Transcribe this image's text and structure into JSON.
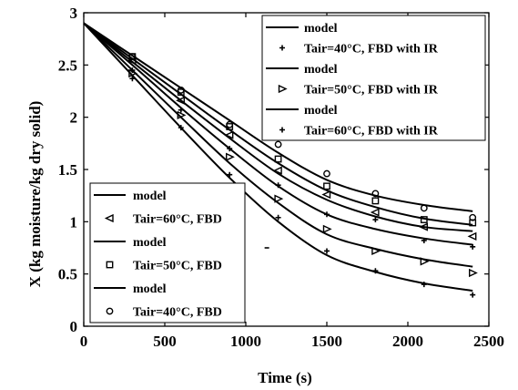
{
  "chart_data": {
    "type": "scatter",
    "xlabel": "Time (s)",
    "ylabel": "X (kg moisture/kg dry solid)",
    "xlim": [
      0,
      2500
    ],
    "ylim": [
      0,
      3
    ],
    "x_ticks": [
      0,
      500,
      1000,
      1500,
      2000,
      2500
    ],
    "y_ticks": [
      0,
      0.5,
      1,
      1.5,
      2,
      2.5,
      3
    ],
    "x_tick_labels": [
      "0",
      "500",
      "1000",
      "1500",
      "2000",
      "2500"
    ],
    "y_tick_labels": [
      "0",
      "0.5",
      "1",
      "1.5",
      "2",
      "2.5",
      "3"
    ],
    "grid": false,
    "legends": [
      {
        "placement": "top-right",
        "entries": [
          {
            "marker": "line",
            "label": "model"
          },
          {
            "marker": "plus",
            "label": "Tair=40°C, FBD with IR"
          },
          {
            "marker": "line",
            "label": "model"
          },
          {
            "marker": "triangle-right",
            "label": "Tair=50°C, FBD with IR"
          },
          {
            "marker": "line",
            "label": "model"
          },
          {
            "marker": "plus",
            "label": "Tair=60°C, FBD with IR"
          }
        ]
      },
      {
        "placement": "bottom-left",
        "entries": [
          {
            "marker": "line",
            "label": "model"
          },
          {
            "marker": "triangle-left",
            "label": "Tair=60°C, FBD"
          },
          {
            "marker": "line",
            "label": "model"
          },
          {
            "marker": "square",
            "label": "Tair=50°C, FBD"
          },
          {
            "marker": "line",
            "label": "model"
          },
          {
            "marker": "circle",
            "label": "Tair=40°C, FBD"
          }
        ]
      }
    ],
    "series": [
      {
        "kind": "line",
        "x": [
          0,
          300,
          600,
          900,
          1200,
          1500,
          1800,
          2100,
          2400
        ],
        "y": [
          2.9,
          2.59,
          2.28,
          1.97,
          1.66,
          1.4,
          1.25,
          1.16,
          1.1
        ]
      },
      {
        "kind": "line",
        "x": [
          0,
          300,
          600,
          900,
          1200,
          1500,
          1800,
          2100,
          2400
        ],
        "y": [
          2.9,
          2.56,
          2.22,
          1.88,
          1.56,
          1.3,
          1.14,
          1.03,
          0.97
        ]
      },
      {
        "kind": "line",
        "x": [
          0,
          300,
          600,
          900,
          1200,
          1500,
          1800,
          2100,
          2400
        ],
        "y": [
          2.9,
          2.53,
          2.16,
          1.8,
          1.46,
          1.21,
          1.05,
          0.95,
          0.91
        ]
      },
      {
        "kind": "line",
        "x": [
          0,
          300,
          600,
          900,
          1200,
          1500,
          1800,
          2100,
          2400
        ],
        "y": [
          2.9,
          2.5,
          2.09,
          1.7,
          1.34,
          1.07,
          0.93,
          0.84,
          0.78
        ]
      },
      {
        "kind": "line",
        "x": [
          0,
          300,
          600,
          900,
          1200,
          1500,
          1800,
          2100,
          2400
        ],
        "y": [
          2.9,
          2.45,
          2.0,
          1.56,
          1.18,
          0.88,
          0.74,
          0.64,
          0.57
        ]
      },
      {
        "kind": "line",
        "x": [
          0,
          300,
          600,
          900,
          1200,
          1500,
          1800,
          2100,
          2400
        ],
        "y": [
          2.9,
          2.4,
          1.9,
          1.42,
          1.0,
          0.68,
          0.52,
          0.41,
          0.34
        ]
      },
      {
        "kind": "points",
        "marker": "circle",
        "x": [
          300,
          600,
          900,
          1200,
          1500,
          1800,
          2100,
          2400
        ],
        "y": [
          2.58,
          2.26,
          1.93,
          1.74,
          1.46,
          1.27,
          1.13,
          1.04
        ]
      },
      {
        "kind": "points",
        "marker": "square",
        "x": [
          300,
          600,
          900,
          1200,
          1500,
          1800,
          2100,
          2400
        ],
        "y": [
          2.58,
          2.24,
          1.91,
          1.6,
          1.34,
          1.2,
          1.02,
          0.99
        ]
      },
      {
        "kind": "points",
        "marker": "triangle-left",
        "x": [
          300,
          600,
          900,
          1200,
          1500,
          1800,
          2100,
          2400
        ],
        "y": [
          2.54,
          2.16,
          1.83,
          1.49,
          1.26,
          1.09,
          0.95,
          0.86
        ]
      },
      {
        "kind": "points",
        "marker": "plus",
        "x": [
          300,
          600,
          900,
          1200,
          1500,
          1800,
          2100,
          2400
        ],
        "y": [
          2.45,
          2.07,
          1.7,
          1.35,
          1.07,
          1.02,
          0.82,
          0.76
        ]
      },
      {
        "kind": "points",
        "marker": "triangle-right",
        "x": [
          300,
          600,
          900,
          1200,
          1500,
          1800,
          2100,
          2400
        ],
        "y": [
          2.42,
          2.02,
          1.62,
          1.22,
          0.93,
          0.72,
          0.62,
          0.51
        ]
      },
      {
        "kind": "points",
        "marker": "plus",
        "x": [
          300,
          600,
          900,
          1200,
          1500,
          1800,
          2100,
          2400
        ],
        "y": [
          2.37,
          1.9,
          1.45,
          1.04,
          0.72,
          0.53,
          0.4,
          0.3
        ]
      },
      {
        "kind": "points",
        "marker": "dash",
        "x": [
          1130
        ],
        "y": [
          0.75
        ]
      }
    ]
  }
}
